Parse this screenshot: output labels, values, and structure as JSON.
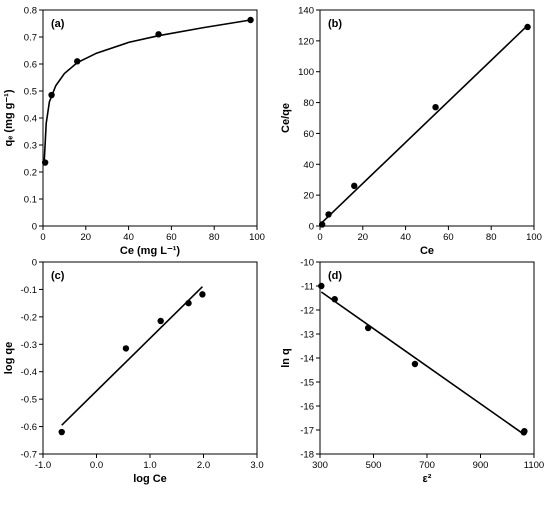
{
  "chart_data": [
    {
      "panel": "(a)",
      "type": "scatter",
      "xlabel": "Ce (mg L⁻¹)",
      "ylabel": "qₑ (mg g⁻¹)",
      "xlim": [
        0,
        100
      ],
      "ylim": [
        0,
        0.8
      ],
      "xticks": [
        0,
        20,
        40,
        60,
        80,
        100
      ],
      "yticks": [
        0,
        0.1,
        0.2,
        0.3,
        0.4,
        0.5,
        0.6,
        0.7,
        0.8
      ],
      "points": [
        {
          "x": 1.0,
          "y": 0.235
        },
        {
          "x": 4.0,
          "y": 0.485
        },
        {
          "x": 16.0,
          "y": 0.61
        },
        {
          "x": 54.0,
          "y": 0.71
        },
        {
          "x": 97.0,
          "y": 0.763
        }
      ],
      "fit": "curve",
      "fit_curve": [
        {
          "x": 0.5,
          "y": 0.23
        },
        {
          "x": 1.5,
          "y": 0.38
        },
        {
          "x": 3.0,
          "y": 0.46
        },
        {
          "x": 6.0,
          "y": 0.52
        },
        {
          "x": 10.0,
          "y": 0.565
        },
        {
          "x": 16.0,
          "y": 0.605
        },
        {
          "x": 25.0,
          "y": 0.64
        },
        {
          "x": 40.0,
          "y": 0.68
        },
        {
          "x": 54.0,
          "y": 0.705
        },
        {
          "x": 75.0,
          "y": 0.735
        },
        {
          "x": 97.0,
          "y": 0.763
        }
      ]
    },
    {
      "panel": "(b)",
      "type": "scatter",
      "xlabel": "Ce",
      "ylabel": "Ce/qe",
      "xlim": [
        0,
        100
      ],
      "ylim": [
        0,
        140
      ],
      "xticks": [
        0,
        20,
        40,
        60,
        80,
        100
      ],
      "yticks": [
        0,
        20,
        40,
        60,
        80,
        100,
        120,
        140
      ],
      "points": [
        {
          "x": 1.0,
          "y": 1.0
        },
        {
          "x": 4.0,
          "y": 7.5
        },
        {
          "x": 16.0,
          "y": 26.0
        },
        {
          "x": 54.0,
          "y": 77.0
        },
        {
          "x": 97.0,
          "y": 129.0
        }
      ],
      "fit": "line",
      "fit_line": [
        {
          "x": 0,
          "y": 1.0
        },
        {
          "x": 97.0,
          "y": 130.0
        }
      ]
    },
    {
      "panel": "(c)",
      "type": "scatter",
      "xlabel": "log Ce",
      "ylabel": "log qe",
      "xlim": [
        -1.0,
        3.0
      ],
      "ylim": [
        -0.7,
        0
      ],
      "xticks": [
        -1.0,
        0.0,
        1.0,
        2.0,
        3.0
      ],
      "xtick_labels": [
        "-1.0",
        "0.0",
        "1.0",
        "2.0",
        "3.0"
      ],
      "yticks": [
        -0.7,
        -0.6,
        -0.5,
        -0.4,
        -0.3,
        -0.2,
        -0.1,
        0
      ],
      "ytick_labels": [
        "-0.7",
        "-0.6",
        "-0.5",
        "-0.4",
        "-0.3",
        "-0.2",
        "-0.1",
        "0"
      ],
      "points": [
        {
          "x": -0.65,
          "y": -0.62
        },
        {
          "x": 0.55,
          "y": -0.315
        },
        {
          "x": 1.2,
          "y": -0.215
        },
        {
          "x": 1.72,
          "y": -0.15
        },
        {
          "x": 1.98,
          "y": -0.118
        }
      ],
      "fit": "line",
      "fit_line": [
        {
          "x": -0.65,
          "y": -0.595
        },
        {
          "x": 1.98,
          "y": -0.09
        }
      ]
    },
    {
      "panel": "(d)",
      "type": "scatter",
      "xlabel": "ε²",
      "ylabel": "ln q",
      "xlim": [
        300,
        1100
      ],
      "ylim": [
        -18,
        -10
      ],
      "xticks": [
        300,
        500,
        700,
        900,
        1100
      ],
      "yticks": [
        -18,
        -17,
        -16,
        -15,
        -14,
        -13,
        -12,
        -11,
        -10
      ],
      "points": [
        {
          "x": 305,
          "y": -11.0
        },
        {
          "x": 355,
          "y": -11.55
        },
        {
          "x": 480,
          "y": -12.75
        },
        {
          "x": 655,
          "y": -14.25
        },
        {
          "x": 1062,
          "y": -17.1
        },
        {
          "x": 1064,
          "y": -17.05
        }
      ],
      "fit": "line",
      "fit_line": [
        {
          "x": 305,
          "y": -11.25
        },
        {
          "x": 1065,
          "y": -17.2
        }
      ]
    }
  ]
}
